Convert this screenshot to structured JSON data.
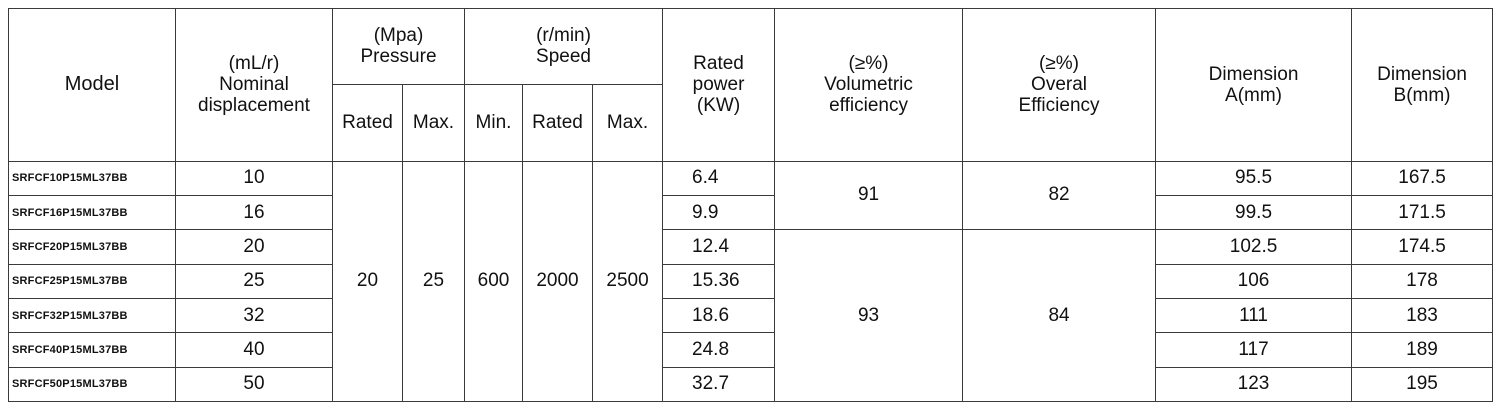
{
  "headers": {
    "model": "Model",
    "displacement": {
      "unit": "(mL/r)",
      "line1": "Nominal",
      "line2": "displacement"
    },
    "pressure": {
      "unit": "(Mpa)",
      "label": "Pressure",
      "sub": [
        "Rated",
        "Max."
      ]
    },
    "speed": {
      "unit": "(r/min)",
      "label": "Speed",
      "sub": [
        "Min.",
        "Rated",
        "Max."
      ]
    },
    "rated_power": {
      "line1": "Rated",
      "line2": "power",
      "line3": "(KW)"
    },
    "volumetric": {
      "unit": "(≥%)",
      "line1": "Volumetric",
      "line2": "efficiency"
    },
    "overall": {
      "unit": "(≥%)",
      "line1": "Overal",
      "line2": "Efficiency"
    },
    "dim_a": {
      "line1": "Dimension",
      "line2": "A(mm)"
    },
    "dim_b": {
      "line1": "Dimension",
      "line2": "B(mm)"
    }
  },
  "shared": {
    "pressure_rated": "20",
    "pressure_max": "25",
    "speed_min": "600",
    "speed_rated": "2000",
    "speed_max": "2500",
    "vol_eff_group1": "91",
    "overall_eff_group1": "82",
    "vol_eff_group2": "93",
    "overall_eff_group2": "84"
  },
  "rows": [
    {
      "model": "SRFCF10P15ML37BB",
      "displacement": "10",
      "power": "6.4",
      "dim_a": "95.5",
      "dim_b": "167.5"
    },
    {
      "model": "SRFCF16P15ML37BB",
      "displacement": "16",
      "power": "9.9",
      "dim_a": "99.5",
      "dim_b": "171.5"
    },
    {
      "model": "SRFCF20P15ML37BB",
      "displacement": "20",
      "power": "12.4",
      "dim_a": "102.5",
      "dim_b": "174.5"
    },
    {
      "model": "SRFCF25P15ML37BB",
      "displacement": "25",
      "power": "15.36",
      "dim_a": "106",
      "dim_b": "178"
    },
    {
      "model": "SRFCF32P15ML37BB",
      "displacement": "32",
      "power": "18.6",
      "dim_a": "111",
      "dim_b": "183"
    },
    {
      "model": "SRFCF40P15ML37BB",
      "displacement": "40",
      "power": "24.8",
      "dim_a": "117",
      "dim_b": "189"
    },
    {
      "model": "SRFCF50P15ML37BB",
      "displacement": "50",
      "power": "32.7",
      "dim_a": "123",
      "dim_b": "195"
    }
  ]
}
